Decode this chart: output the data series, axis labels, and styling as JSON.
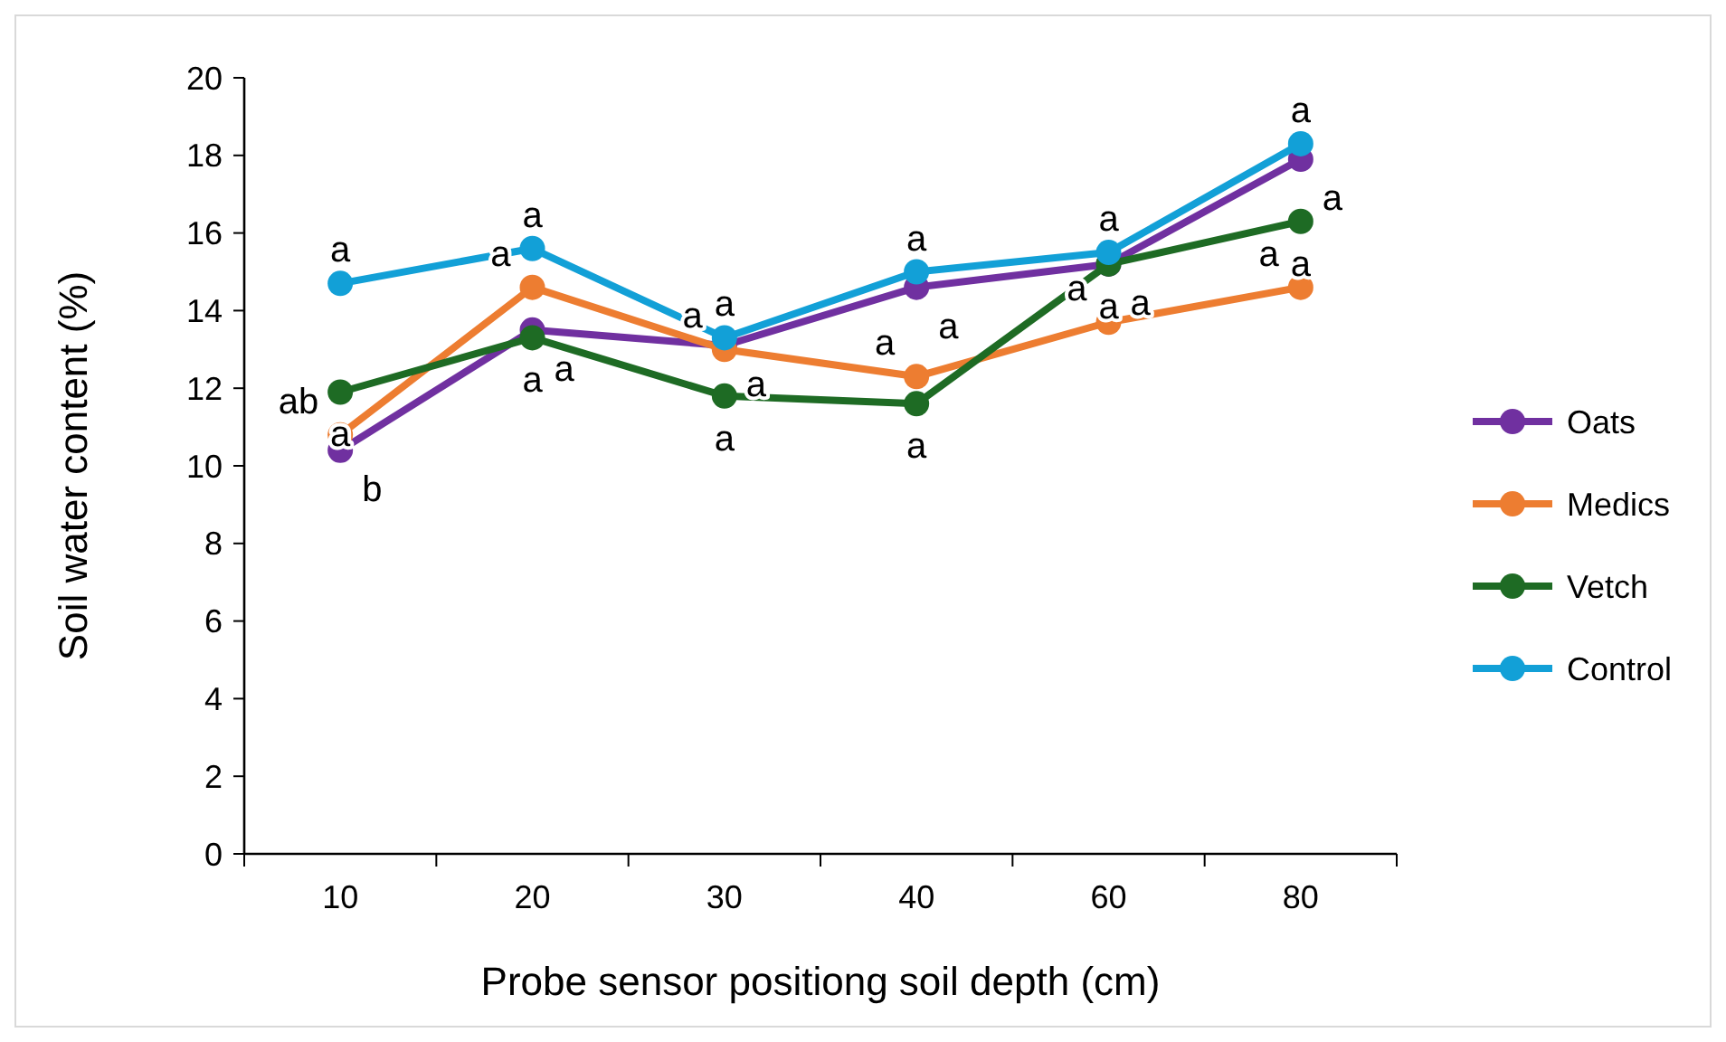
{
  "chart_data": {
    "type": "line",
    "xlabel": "Probe sensor positiong soil depth (cm)",
    "ylabel": "Soil water content (%)",
    "categories": [
      "10",
      "20",
      "30",
      "40",
      "60",
      "80"
    ],
    "ylim": [
      0,
      20
    ],
    "yticks": [
      0,
      2,
      4,
      6,
      8,
      10,
      12,
      14,
      16,
      18,
      20
    ],
    "grid": false,
    "legend": "right",
    "marker": "circle",
    "line_style": "solid",
    "series": [
      {
        "name": "Oats",
        "color": "#7030a0",
        "values": [
          10.4,
          13.5,
          13.1,
          14.6,
          15.2,
          17.9
        ],
        "value_labels": [
          "b",
          "a",
          "a",
          "a",
          "a",
          "a"
        ]
      },
      {
        "name": "Medics",
        "color": "#ed7d31",
        "values": [
          10.8,
          14.6,
          13.0,
          12.3,
          13.7,
          14.6
        ],
        "value_labels": [
          "ab",
          "a",
          "a",
          "a",
          "a",
          "a"
        ]
      },
      {
        "name": "Vetch",
        "color": "#1e6b24",
        "values": [
          11.9,
          13.3,
          11.8,
          11.6,
          15.2,
          16.3
        ],
        "value_labels": [
          "a",
          "a",
          "a",
          "a",
          "a",
          "a"
        ]
      },
      {
        "name": "Control",
        "color": "#12a0d7",
        "values": [
          14.7,
          15.6,
          13.3,
          15.0,
          15.5,
          18.3
        ],
        "value_labels": [
          "a",
          "a",
          "a",
          "a",
          "a",
          "a"
        ]
      }
    ]
  }
}
